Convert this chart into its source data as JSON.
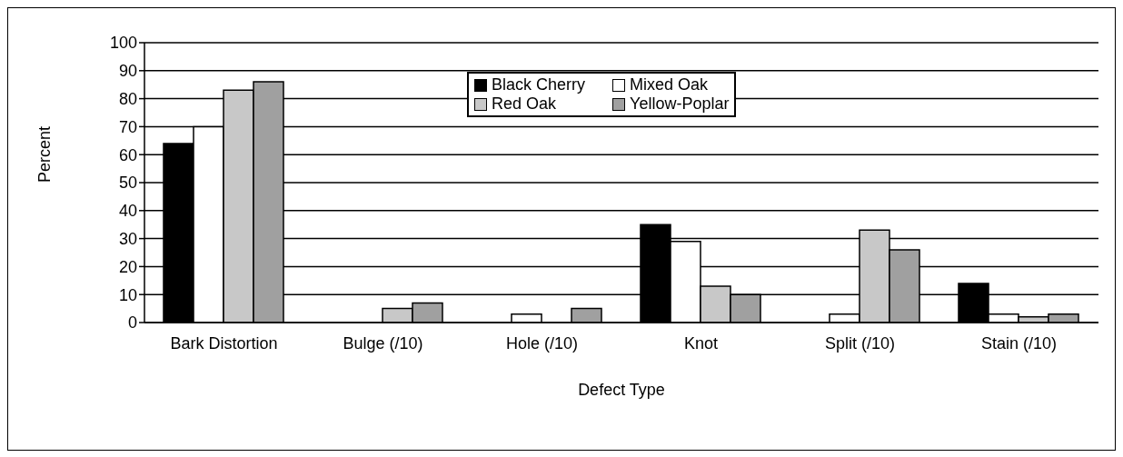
{
  "chart_data": {
    "type": "bar",
    "xlabel": "Defect Type",
    "ylabel": "Percent",
    "categories": [
      "Bark Distortion",
      "Bulge (/10)",
      "Hole (/10)",
      "Knot",
      "Split (/10)",
      "Stain (/10)"
    ],
    "series": [
      {
        "name": "Black Cherry",
        "color": "#000000",
        "values": [
          64,
          0,
          0,
          35,
          0,
          14
        ]
      },
      {
        "name": "Mixed Oak",
        "color": "#ffffff",
        "values": [
          70,
          0,
          3,
          29,
          3,
          3
        ]
      },
      {
        "name": "Red Oak",
        "color": "#c8c8c8",
        "values": [
          83,
          5,
          0,
          13,
          33,
          2
        ]
      },
      {
        "name": "Yellow-Poplar",
        "color": "#a0a0a0",
        "values": [
          86,
          7,
          5,
          10,
          26,
          3
        ]
      }
    ],
    "ylim": [
      0,
      100
    ],
    "yticks": [
      0,
      10,
      20,
      30,
      40,
      50,
      60,
      70,
      80,
      90,
      100
    ],
    "grid": "y",
    "legend": "top"
  }
}
